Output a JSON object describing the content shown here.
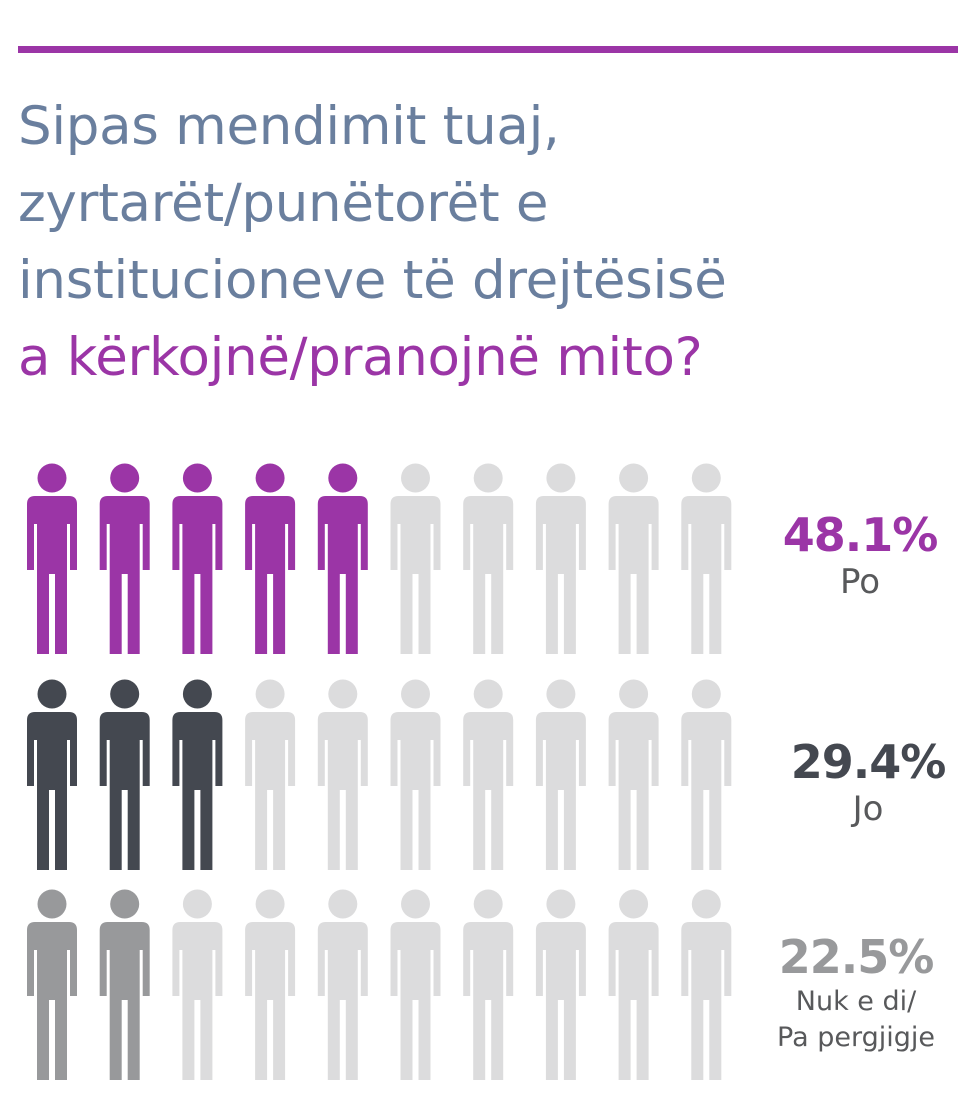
{
  "title": {
    "lines": [
      "Sipas mendimit tuaj,",
      "zyrtarët/punëtorët e",
      "institucioneve të drejtësisë",
      "a kërkojnë/pranojnë mito?"
    ]
  },
  "colors": {
    "accent": "#9b35a6",
    "title_text": "#6a7f9e",
    "empty_icon": "#dcdcdd",
    "label_text": "#58595b"
  },
  "chart_data": {
    "type": "pictograph",
    "icon": "person-icon",
    "icons_per_row": 10,
    "series": [
      {
        "name": "Po",
        "value": 48.1,
        "value_label": "48.1%",
        "filled_icons": 5,
        "color": "#9b35a6"
      },
      {
        "name": "Jo",
        "value": 29.4,
        "value_label": "29.4%",
        "filled_icons": 3,
        "color": "#444850"
      },
      {
        "name": "Nuk e di/ Pa pergjigje",
        "name_lines": [
          "Nuk e di/",
          "Pa pergjigje"
        ],
        "value": 22.5,
        "value_label": "22.5%",
        "filled_icons": 2,
        "color": "#98999b"
      }
    ]
  }
}
